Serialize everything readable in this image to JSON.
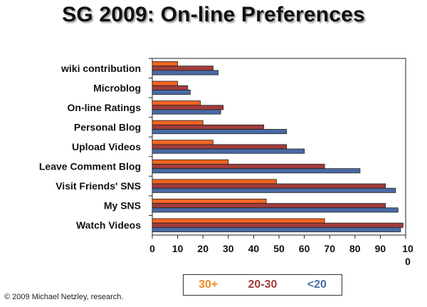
{
  "chart_data": {
    "type": "bar",
    "orientation": "horizontal",
    "title": "SG 2009: On-line Preferences",
    "categories": [
      "wiki contribution",
      "Microblog",
      "On-line Ratings",
      "Personal Blog",
      "Upload Videos",
      "Leave Comment Blog",
      "Visit Friends' SNS",
      "My SNS",
      "Watch Videos"
    ],
    "series": [
      {
        "name": "30+",
        "color": "#f26522",
        "values": [
          10,
          10,
          19,
          20,
          24,
          30,
          49,
          45,
          68
        ]
      },
      {
        "name": "20-30",
        "color": "#a23c3c",
        "values": [
          24,
          14,
          28,
          44,
          53,
          68,
          92,
          92,
          99
        ]
      },
      {
        "name": "<20",
        "color": "#4a6aa5",
        "values": [
          26,
          15,
          27,
          53,
          60,
          82,
          96,
          97,
          98
        ]
      }
    ],
    "xlim": [
      0,
      100
    ],
    "xticks": [
      "0",
      "10",
      "20",
      "30",
      "40",
      "50",
      "60",
      "70",
      "80",
      "90",
      "10\n0"
    ],
    "grid": false,
    "legend_position": "bottom"
  },
  "copyright": "© 2009 Michael Netzley, research."
}
